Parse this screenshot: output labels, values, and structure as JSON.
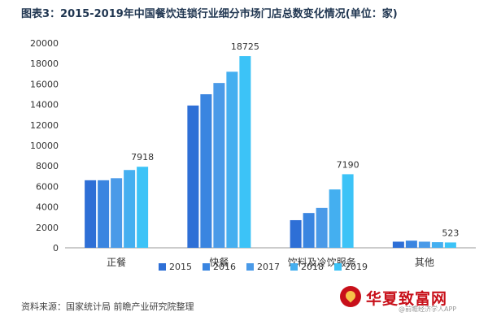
{
  "chart_data": {
    "type": "bar",
    "title": "图表3：2015-2019年中国餐饮连锁行业细分市场门店总数变化情况(单位：家)",
    "categories": [
      "正餐",
      "快餐",
      "饮料及冷饮服务",
      "其他"
    ],
    "series": [
      {
        "name": "2015",
        "values": [
          6600,
          13900,
          2700,
          600
        ],
        "color": "#2e6fd6"
      },
      {
        "name": "2016",
        "values": [
          6600,
          15000,
          3400,
          700
        ],
        "color": "#3a85e0"
      },
      {
        "name": "2017",
        "values": [
          6800,
          16100,
          3900,
          600
        ],
        "color": "#4a9ae8"
      },
      {
        "name": "2018",
        "values": [
          7600,
          17200,
          5700,
          550
        ],
        "color": "#44aff0"
      },
      {
        "name": "2019",
        "values": [
          7918,
          18725,
          7190,
          523
        ],
        "color": "#3cc3f7"
      }
    ],
    "data_labels": [
      "7918",
      "18725",
      "7190",
      "523"
    ],
    "yticks": [
      "0",
      "2000",
      "4000",
      "6000",
      "8000",
      "10000",
      "12000",
      "14000",
      "16000",
      "18000",
      "20000"
    ],
    "ylim": [
      0,
      20000
    ],
    "grid": false,
    "legend_position": "bottom"
  },
  "footer": {
    "source": "资料来源：国家统计局 前瞻产业研究院整理"
  },
  "watermark": {
    "brand": "华夏致富网",
    "sub": "@前瞻经济学人APP"
  }
}
